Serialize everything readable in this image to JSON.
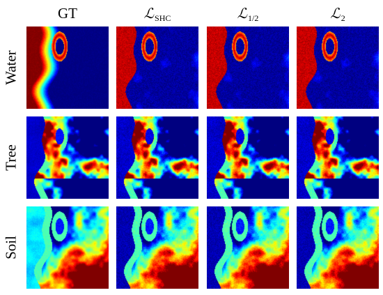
{
  "columns": [
    {
      "id": "gt",
      "label": "GT",
      "symbol": "",
      "sub": ""
    },
    {
      "id": "shc",
      "label": "",
      "symbol": "ℒ",
      "sub": "SHC"
    },
    {
      "id": "half",
      "label": "",
      "symbol": "ℒ",
      "sub": "1/2"
    },
    {
      "id": "l2",
      "label": "",
      "symbol": "ℒ",
      "sub": "2"
    }
  ],
  "rows": [
    {
      "id": "water",
      "label": "Water"
    },
    {
      "id": "tree",
      "label": "Tree"
    },
    {
      "id": "soil",
      "label": "Soil"
    }
  ],
  "colormap": "jet",
  "colors": {
    "low": "#00008f",
    "mid": "#00ffff",
    "high": "#800000",
    "background": "#ffffff"
  }
}
